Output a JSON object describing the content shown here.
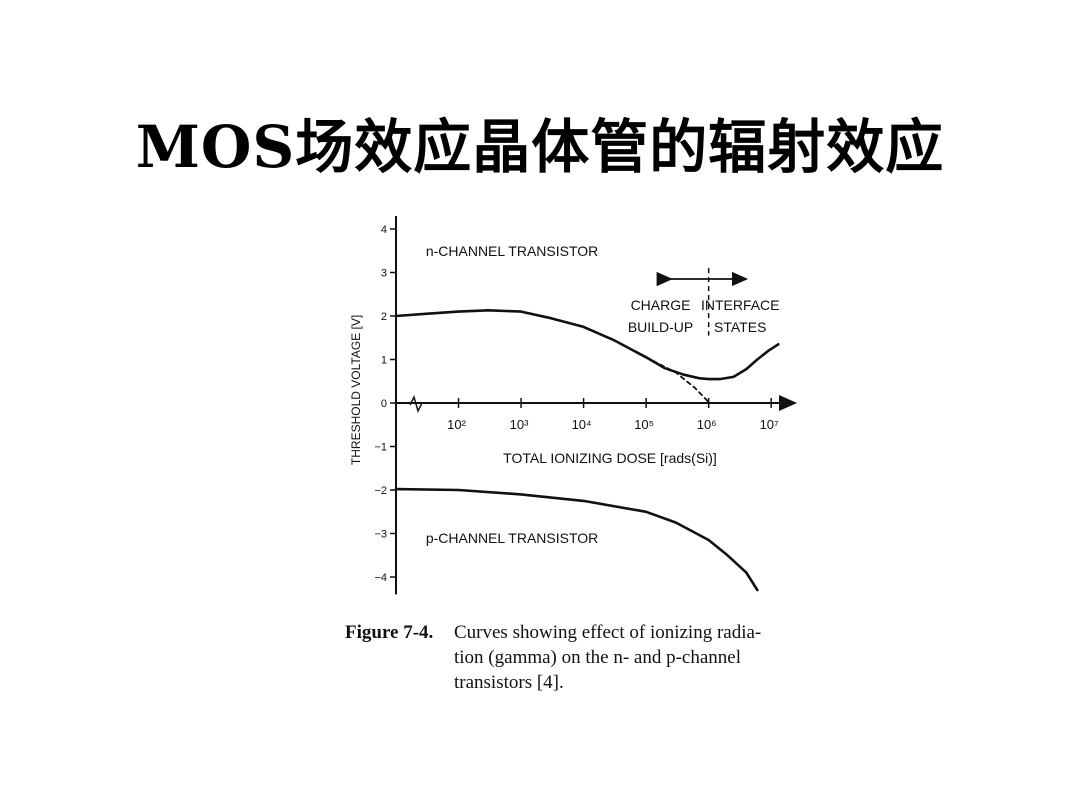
{
  "slide": {
    "title": "MOS场效应晶体管的辐射效应"
  },
  "figure": {
    "caption_label": "Figure 7-4.",
    "caption_lines": [
      "Curves showing effect of ionizing radia-",
      "tion (gamma) on the n- and p-channel",
      "transistors [4]."
    ]
  },
  "chart_data": {
    "type": "line",
    "title": "",
    "xlabel": "TOTAL IONIZING DOSE [rads(Si)]",
    "ylabel": "THRESHOLD VOLTAGE [V]",
    "x_scale": "log",
    "xlim": [
      10,
      20000000
    ],
    "ylim": [
      -4.4,
      4.3
    ],
    "x_ticks": [
      {
        "value": 100,
        "label": "10²"
      },
      {
        "value": 1000,
        "label": "10³"
      },
      {
        "value": 10000,
        "label": "10⁴"
      },
      {
        "value": 100000,
        "label": "10⁵"
      },
      {
        "value": 1000000,
        "label": "10⁶"
      },
      {
        "value": 10000000,
        "label": "10⁷"
      }
    ],
    "y_ticks": [
      {
        "value": 4,
        "label": "4"
      },
      {
        "value": 3,
        "label": "3"
      },
      {
        "value": 2,
        "label": "2"
      },
      {
        "value": 1,
        "label": "1"
      },
      {
        "value": 0,
        "label": "0"
      },
      {
        "value": -1,
        "label": "−1"
      },
      {
        "value": -2,
        "label": "−2"
      },
      {
        "value": -3,
        "label": "−3"
      },
      {
        "value": -4,
        "label": "−4"
      }
    ],
    "grid": false,
    "legend": "none",
    "series": [
      {
        "name": "n-CHANNEL TRANSISTOR",
        "style": "solid",
        "x": [
          10,
          30,
          100,
          300,
          1000,
          3000,
          10000,
          30000,
          100000,
          200000,
          400000,
          700000,
          1000000,
          1500000,
          2500000,
          4000000,
          6000000,
          9000000,
          13000000
        ],
        "y": [
          2.0,
          2.05,
          2.1,
          2.13,
          2.1,
          1.95,
          1.75,
          1.45,
          1.05,
          0.8,
          0.65,
          0.57,
          0.55,
          0.55,
          0.6,
          0.78,
          1.0,
          1.2,
          1.35
        ]
      },
      {
        "name": "n-CHANNEL (charge build-up extrapolation)",
        "style": "dashed",
        "x": [
          100000,
          300000,
          600000,
          1000000
        ],
        "y": [
          1.05,
          0.7,
          0.35,
          0.02
        ]
      },
      {
        "name": "p-CHANNEL TRANSISTOR",
        "style": "solid",
        "x": [
          10,
          100,
          1000,
          10000,
          100000,
          300000,
          1000000,
          2000000,
          4000000,
          6000000
        ],
        "y": [
          -1.98,
          -2.0,
          -2.1,
          -2.25,
          -2.5,
          -2.75,
          -3.15,
          -3.5,
          -3.9,
          -4.3
        ]
      }
    ],
    "annotations": [
      {
        "text": "n-CHANNEL TRANSISTOR",
        "x": 30,
        "y": 3.5
      },
      {
        "text": "p-CHANNEL TRANSISTOR",
        "x": 30,
        "y": -3.1
      },
      {
        "text": "CHARGE",
        "x": 170000,
        "y": 2.25
      },
      {
        "text": "BUILD-UP",
        "x": 170000,
        "y": 1.75
      },
      {
        "text": "INTERFACE",
        "x": 3200000,
        "y": 2.25
      },
      {
        "text": "STATES",
        "x": 3200000,
        "y": 1.75
      }
    ],
    "region_divider_x": 1000000,
    "region_arrow": {
      "from": 250000,
      "to": 4000000,
      "y": 2.85
    }
  }
}
